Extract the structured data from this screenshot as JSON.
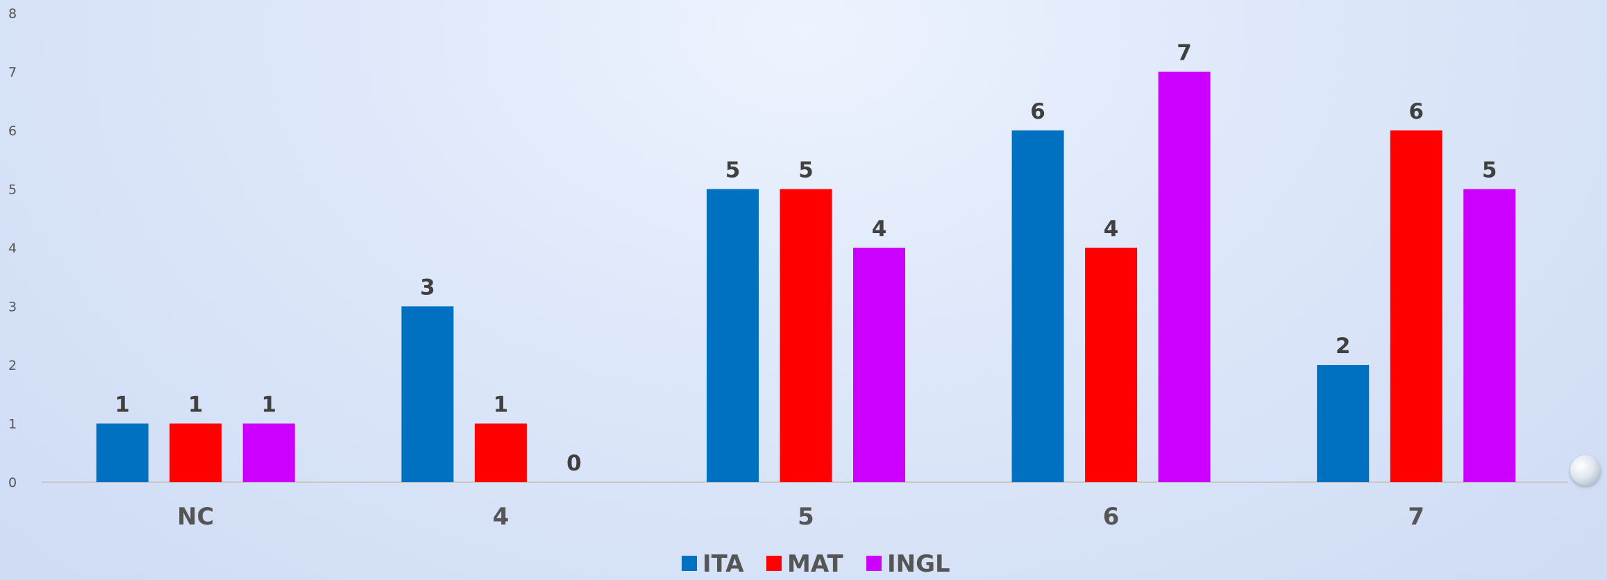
{
  "chart_data": {
    "type": "bar",
    "categories": [
      "NC",
      "4",
      "5",
      "6",
      "7"
    ],
    "series": [
      {
        "name": "ITA",
        "color": "#0070C0",
        "values": [
          1,
          3,
          5,
          6,
          2
        ]
      },
      {
        "name": "MAT",
        "color": "#FF0000",
        "values": [
          1,
          1,
          5,
          4,
          6
        ]
      },
      {
        "name": "INGL",
        "color": "#CC00FF",
        "values": [
          1,
          0,
          4,
          7,
          5
        ]
      }
    ],
    "ylim": [
      0,
      8
    ],
    "yticks": [
      "0",
      "1",
      "2",
      "3",
      "4",
      "5",
      "6",
      "7",
      "8"
    ],
    "data_labels": true,
    "legend_position": "bottom",
    "grid": false
  }
}
